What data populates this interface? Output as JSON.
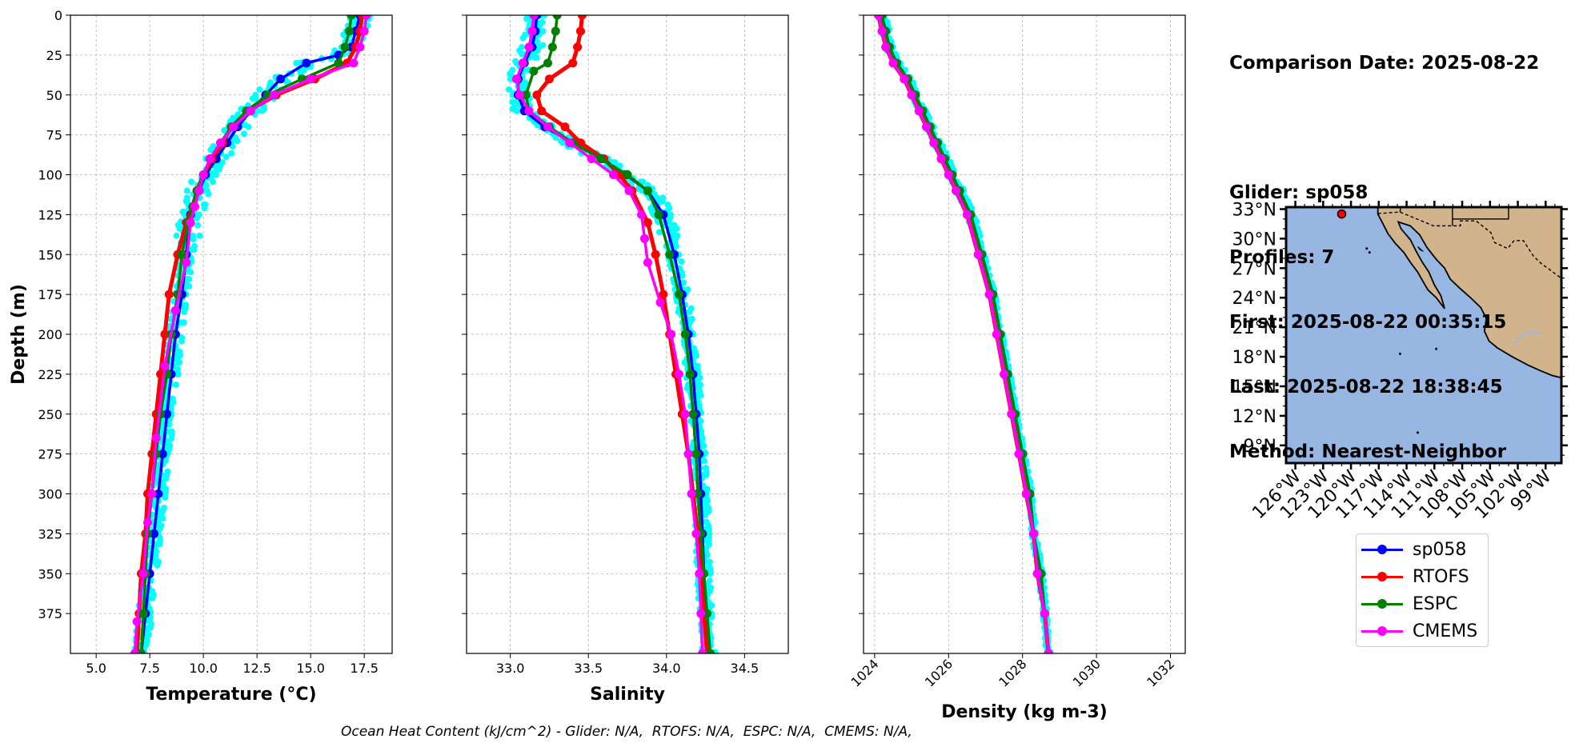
{
  "info": {
    "comparison_date": "Comparison Date: 2025-08-22",
    "glider": "Glider: sp058",
    "profiles": "Profiles: 7",
    "first": "First: 2025-08-22 00:35:15",
    "last": "Last: 2025-08-22 18:38:45",
    "method": "Method: Nearest-Neighbor"
  },
  "footer": {
    "ohc_text": "Ocean Heat Content (kJ/cm^2) - Glider: N/A,  RTOFS: N/A,  ESPC: N/A,  CMEMS: N/A,"
  },
  "legend": [
    {
      "name": "sp058",
      "color": "#0000ff"
    },
    {
      "name": "RTOFS",
      "color": "#ff0000"
    },
    {
      "name": "ESPC",
      "color": "#008000"
    },
    {
      "name": "CMEMS",
      "color": "#ff00ff"
    }
  ],
  "chart_data": [
    {
      "type": "line",
      "xlabel": "Temperature (°C)",
      "ylabel": "Depth (m)",
      "xlim": [
        3.8,
        18.8
      ],
      "ylim": [
        400,
        0
      ],
      "xticks": [
        5.0,
        7.5,
        10.0,
        12.5,
        15.0,
        17.5
      ],
      "xtick_labels": [
        "5.0",
        "7.5",
        "10.0",
        "12.5",
        "15.0",
        "17.5"
      ],
      "yticks": [
        0,
        25,
        50,
        75,
        100,
        125,
        150,
        175,
        200,
        225,
        250,
        275,
        300,
        325,
        350,
        375
      ],
      "ytick_labels": [
        "0",
        "25",
        "50",
        "75",
        "100",
        "125",
        "150",
        "175",
        "200",
        "225",
        "250",
        "275",
        "300",
        "325",
        "350",
        "375"
      ],
      "grid": true,
      "glider_individual_profiles_color": "#00ffff",
      "series": [
        {
          "name": "sp058",
          "color": "#0000ff",
          "y": [
            0,
            10,
            20,
            25,
            30,
            40,
            50,
            60,
            70,
            80,
            90,
            100,
            110,
            125,
            150,
            175,
            200,
            225,
            250,
            275,
            300,
            325,
            350,
            375,
            400
          ],
          "x": [
            17.3,
            17.1,
            16.9,
            16.3,
            14.8,
            13.6,
            12.9,
            12.2,
            11.6,
            11.1,
            10.6,
            10.1,
            9.8,
            9.4,
            9.2,
            9.0,
            8.7,
            8.5,
            8.3,
            8.1,
            7.9,
            7.7,
            7.5,
            7.3,
            7.1
          ]
        },
        {
          "name": "RTOFS",
          "color": "#ff0000",
          "y": [
            0,
            10,
            20,
            30,
            40,
            50,
            60,
            70,
            80,
            90,
            100,
            110,
            120,
            130,
            150,
            175,
            200,
            225,
            250,
            275,
            300,
            325,
            350,
            375,
            400
          ],
          "x": [
            17.4,
            17.3,
            17.1,
            16.7,
            15.2,
            13.4,
            12.1,
            11.3,
            10.9,
            10.4,
            10.0,
            9.7,
            9.5,
            9.2,
            8.8,
            8.4,
            8.2,
            8.0,
            7.8,
            7.6,
            7.4,
            7.3,
            7.1,
            7.0,
            6.9
          ]
        },
        {
          "name": "ESPC",
          "color": "#008000",
          "y": [
            0,
            10,
            20,
            30,
            40,
            50,
            60,
            70,
            80,
            90,
            100,
            110,
            120,
            130,
            150,
            175,
            200,
            225,
            250,
            275,
            300,
            325,
            350,
            375,
            400
          ],
          "x": [
            16.9,
            16.8,
            16.6,
            16.3,
            14.6,
            13.0,
            12.0,
            11.3,
            10.8,
            10.3,
            10.0,
            9.7,
            9.5,
            9.3,
            9.0,
            8.8,
            8.5,
            8.3,
            8.0,
            7.8,
            7.6,
            7.4,
            7.3,
            7.2,
            7.1
          ]
        },
        {
          "name": "CMEMS",
          "color": "#ff00ff",
          "y": [
            0,
            10,
            20,
            30,
            40,
            50,
            60,
            70,
            80,
            90,
            100,
            110,
            120,
            130,
            155,
            185,
            220,
            265,
            300,
            318,
            350,
            380,
            400
          ],
          "x": [
            17.6,
            17.5,
            17.3,
            17.0,
            15.0,
            13.3,
            12.2,
            11.4,
            10.8,
            10.3,
            10.0,
            9.8,
            9.6,
            9.4,
            9.2,
            8.7,
            8.2,
            7.8,
            7.6,
            7.4,
            7.2,
            6.9,
            6.8
          ]
        }
      ]
    },
    {
      "type": "line",
      "xlabel": "Salinity",
      "ylabel": "",
      "xlim": [
        32.72,
        34.78
      ],
      "ylim": [
        400,
        0
      ],
      "xticks": [
        33.0,
        33.5,
        34.0,
        34.5
      ],
      "xtick_labels": [
        "33.0",
        "33.5",
        "34.0",
        "34.5"
      ],
      "grid": true,
      "series": [
        {
          "name": "sp058",
          "color": "#0000ff",
          "y": [
            0,
            10,
            20,
            30,
            40,
            50,
            60,
            70,
            80,
            90,
            100,
            110,
            125,
            150,
            175,
            200,
            225,
            250,
            275,
            300,
            325,
            350,
            375,
            400
          ],
          "x": [
            33.17,
            33.16,
            33.14,
            33.09,
            33.05,
            33.05,
            33.09,
            33.22,
            33.4,
            33.58,
            33.74,
            33.88,
            33.98,
            34.05,
            34.1,
            34.14,
            34.17,
            34.19,
            34.21,
            34.22,
            34.23,
            34.24,
            34.25,
            34.27
          ]
        },
        {
          "name": "RTOFS",
          "color": "#ff0000",
          "y": [
            0,
            10,
            20,
            30,
            40,
            50,
            60,
            70,
            80,
            90,
            100,
            110,
            130,
            150,
            175,
            200,
            225,
            250,
            275,
            300,
            325,
            350,
            375,
            400
          ],
          "x": [
            33.46,
            33.45,
            33.43,
            33.4,
            33.25,
            33.17,
            33.2,
            33.35,
            33.45,
            33.6,
            33.7,
            33.78,
            33.88,
            33.93,
            33.98,
            34.02,
            34.06,
            34.1,
            34.14,
            34.17,
            34.2,
            34.22,
            34.24,
            34.26
          ]
        },
        {
          "name": "ESPC",
          "color": "#008000",
          "y": [
            0,
            10,
            20,
            30,
            35,
            50,
            60,
            70,
            80,
            90,
            100,
            110,
            125,
            150,
            175,
            200,
            225,
            250,
            275,
            300,
            325,
            350,
            375,
            400
          ],
          "x": [
            33.3,
            33.29,
            33.27,
            33.24,
            33.15,
            33.1,
            33.12,
            33.25,
            33.4,
            33.58,
            33.75,
            33.88,
            33.95,
            34.02,
            34.08,
            34.12,
            34.15,
            34.17,
            34.19,
            34.2,
            34.22,
            34.24,
            34.26,
            34.28
          ]
        },
        {
          "name": "CMEMS",
          "color": "#ff00ff",
          "y": [
            0,
            10,
            20,
            30,
            40,
            50,
            60,
            70,
            80,
            90,
            100,
            110,
            125,
            140,
            155,
            180,
            200,
            225,
            250,
            275,
            300,
            325,
            350,
            375,
            400
          ],
          "x": [
            33.15,
            33.14,
            33.12,
            33.08,
            33.04,
            33.06,
            33.12,
            33.24,
            33.38,
            33.52,
            33.66,
            33.76,
            33.84,
            33.86,
            33.88,
            33.96,
            34.03,
            34.08,
            34.12,
            34.14,
            34.16,
            34.19,
            34.21,
            34.22,
            34.23
          ]
        }
      ]
    },
    {
      "type": "line",
      "xlabel": "Density (kg m-3)",
      "ylabel": "",
      "xlim": [
        1023.7,
        1032.4
      ],
      "ylim": [
        400,
        0
      ],
      "xticks": [
        1024,
        1026,
        1028,
        1030,
        1032
      ],
      "xtick_labels": [
        "1024",
        "1026",
        "1028",
        "1030",
        "1032"
      ],
      "grid": true,
      "series": [
        {
          "name": "sp058",
          "color": "#0000ff",
          "y": [
            0,
            10,
            20,
            30,
            40,
            50,
            60,
            70,
            80,
            90,
            100,
            110,
            125,
            150,
            175,
            200,
            225,
            250,
            275,
            300,
            325,
            350,
            375,
            400
          ],
          "x": [
            1024.2,
            1024.3,
            1024.4,
            1024.6,
            1024.9,
            1025.1,
            1025.3,
            1025.5,
            1025.7,
            1025.9,
            1026.1,
            1026.3,
            1026.6,
            1026.9,
            1027.2,
            1027.4,
            1027.6,
            1027.8,
            1028.0,
            1028.2,
            1028.3,
            1028.5,
            1028.6,
            1028.7
          ]
        },
        {
          "name": "RTOFS",
          "color": "#ff0000",
          "y": [
            0,
            10,
            20,
            30,
            40,
            50,
            60,
            70,
            80,
            90,
            100,
            110,
            125,
            150,
            175,
            200,
            225,
            250,
            275,
            300,
            325,
            350,
            375,
            400
          ],
          "x": [
            1024.1,
            1024.2,
            1024.3,
            1024.5,
            1024.8,
            1025.0,
            1025.2,
            1025.4,
            1025.6,
            1025.8,
            1026.0,
            1026.2,
            1026.5,
            1026.8,
            1027.1,
            1027.3,
            1027.5,
            1027.7,
            1027.9,
            1028.1,
            1028.3,
            1028.4,
            1028.6,
            1028.7
          ]
        },
        {
          "name": "ESPC",
          "color": "#008000",
          "y": [
            0,
            10,
            20,
            30,
            40,
            50,
            60,
            70,
            80,
            90,
            100,
            110,
            125,
            150,
            175,
            200,
            225,
            250,
            275,
            300,
            325,
            350,
            375,
            400
          ],
          "x": [
            1024.2,
            1024.3,
            1024.4,
            1024.6,
            1024.9,
            1025.1,
            1025.3,
            1025.5,
            1025.7,
            1025.9,
            1026.1,
            1026.3,
            1026.6,
            1026.9,
            1027.2,
            1027.4,
            1027.6,
            1027.8,
            1028.0,
            1028.2,
            1028.3,
            1028.5,
            1028.6,
            1028.7
          ]
        },
        {
          "name": "CMEMS",
          "color": "#ff00ff",
          "y": [
            0,
            10,
            20,
            30,
            40,
            50,
            60,
            70,
            80,
            90,
            100,
            110,
            125,
            150,
            175,
            200,
            225,
            250,
            275,
            300,
            325,
            350,
            375,
            400
          ],
          "x": [
            1024.1,
            1024.2,
            1024.3,
            1024.5,
            1024.8,
            1025.0,
            1025.2,
            1025.4,
            1025.6,
            1025.8,
            1026.0,
            1026.2,
            1026.5,
            1026.8,
            1027.1,
            1027.3,
            1027.5,
            1027.7,
            1027.9,
            1028.1,
            1028.3,
            1028.4,
            1028.6,
            1028.7
          ]
        }
      ]
    },
    {
      "type": "map",
      "xlim_lon": [
        -127,
        -97.3
      ],
      "ylim_lat": [
        7.2,
        33.2
      ],
      "xtick_labels": [
        "126°W",
        "123°W",
        "120°W",
        "117°W",
        "114°W",
        "111°W",
        "108°W",
        "105°W",
        "102°W",
        "99°W"
      ],
      "xticks": [
        -126,
        -123,
        -120,
        -117,
        -114,
        -111,
        -108,
        -105,
        -102,
        -99
      ],
      "ytick_labels": [
        "33°N",
        "30°N",
        "27°N",
        "24°N",
        "21°N",
        "18°N",
        "15°N",
        "12°N",
        "9°N"
      ],
      "yticks": [
        33,
        30,
        27,
        24,
        21,
        18,
        15,
        12,
        9
      ],
      "ocean_color": "#97b6e1",
      "land_color": "#d2b48c",
      "glider_location": {
        "lon": -121,
        "lat": 32.5
      }
    }
  ]
}
